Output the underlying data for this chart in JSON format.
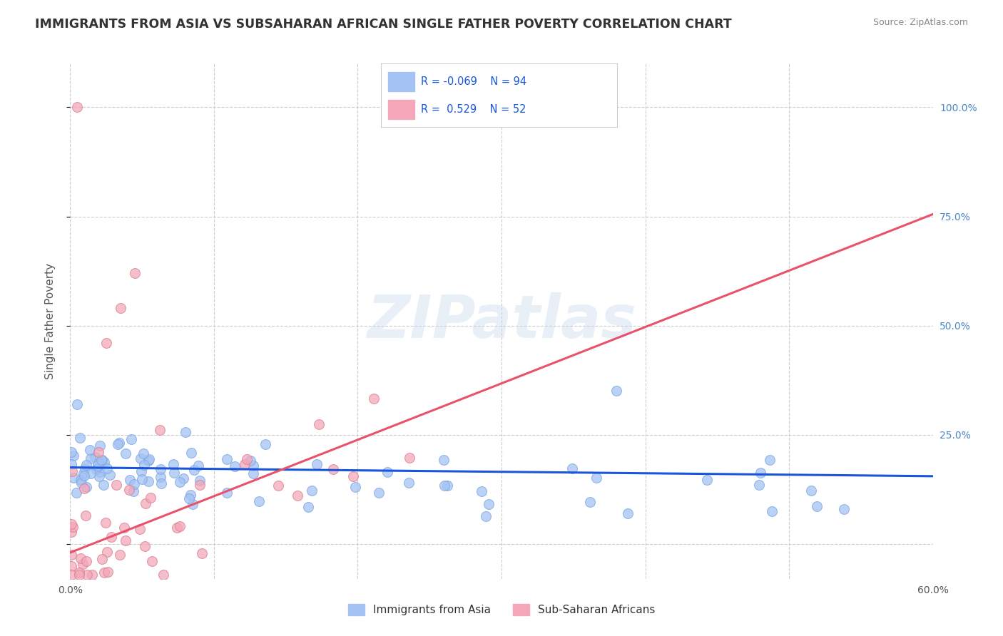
{
  "title": "IMMIGRANTS FROM ASIA VS SUBSAHARAN AFRICAN SINGLE FATHER POVERTY CORRELATION CHART",
  "source": "Source: ZipAtlas.com",
  "ylabel": "Single Father Poverty",
  "xlim": [
    0.0,
    0.6
  ],
  "ylim": [
    -0.08,
    1.1
  ],
  "xticks": [
    0.0,
    0.1,
    0.2,
    0.3,
    0.4,
    0.5,
    0.6
  ],
  "xticklabels": [
    "0.0%",
    "",
    "",
    "",
    "",
    "",
    "60.0%"
  ],
  "yticks": [
    0.0,
    0.25,
    0.5,
    0.75,
    1.0
  ],
  "yticklabels": [
    "",
    "25.0%",
    "50.0%",
    "75.0%",
    "100.0%"
  ],
  "blue_R": -0.069,
  "blue_N": 94,
  "pink_R": 0.529,
  "pink_N": 52,
  "legend_label_blue": "Immigrants from Asia",
  "legend_label_pink": "Sub-Saharan Africans",
  "watermark": "ZIPatlas",
  "blue_color": "#a4c2f4",
  "pink_color": "#f4a7b9",
  "blue_line_color": "#1a56db",
  "pink_line_color": "#e8526a",
  "background_color": "#ffffff",
  "grid_color": "#cccccc",
  "blue_line_x0": 0.0,
  "blue_line_y0": 0.175,
  "blue_line_x1": 0.6,
  "blue_line_y1": 0.155,
  "pink_line_x0": 0.0,
  "pink_line_y0": -0.02,
  "pink_line_x1": 0.6,
  "pink_line_y1": 0.755
}
